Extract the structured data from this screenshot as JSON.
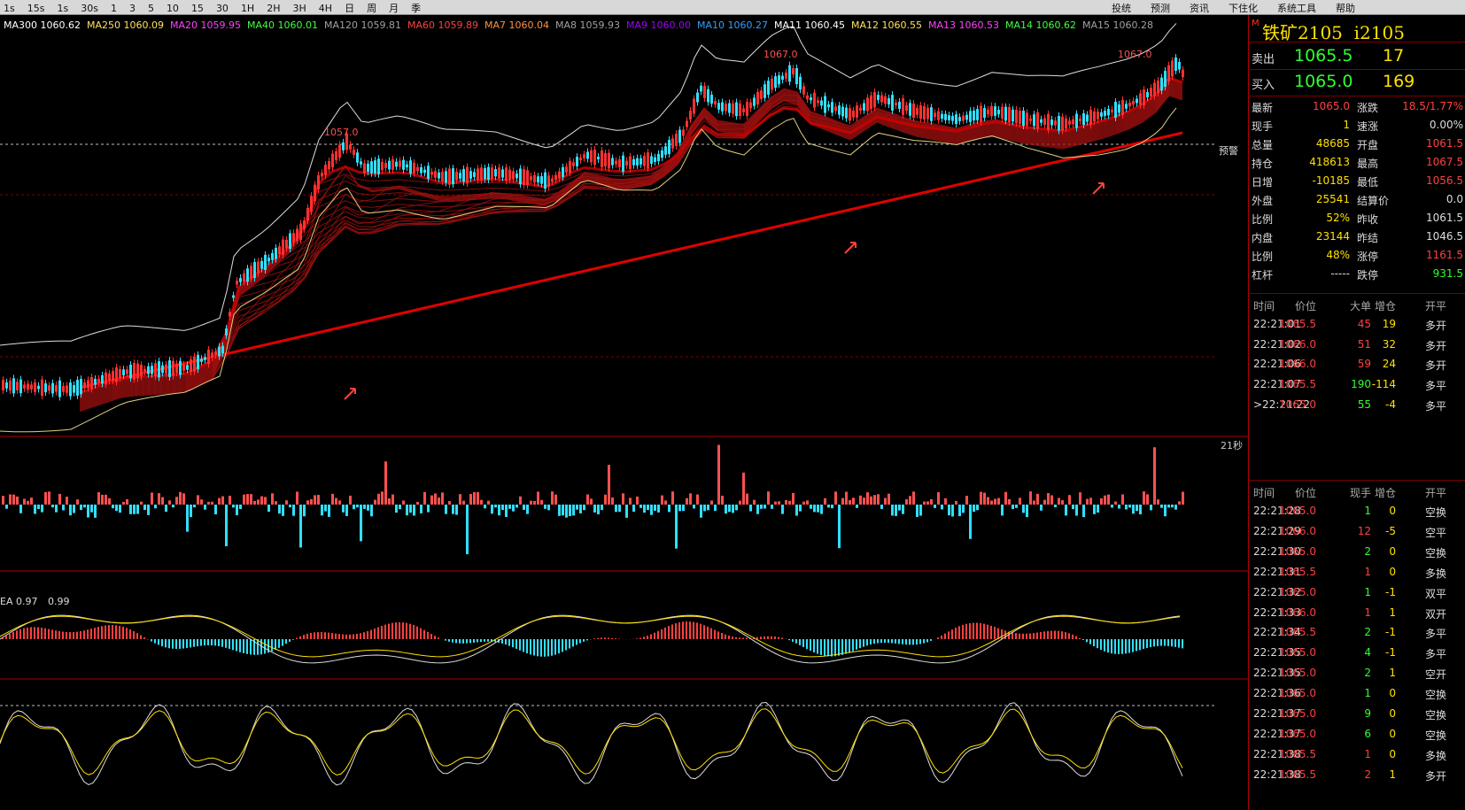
{
  "toolbar": {
    "left_items": [
      "1s",
      "15s",
      "1s",
      "30s",
      "1",
      "3",
      "5",
      "10",
      "15",
      "30",
      "1H",
      "2H",
      "3H",
      "4H",
      "日",
      "周",
      "月",
      "季"
    ],
    "right_items": [
      "投统",
      "预测",
      "资讯",
      "下住化",
      "系统工具",
      "帮助"
    ]
  },
  "ma_legend": [
    {
      "label": "MA300 1060.62",
      "color": "#ffffff"
    },
    {
      "label": "MA250 1060.09",
      "color": "#ffe060"
    },
    {
      "label": "MA20 1059.95",
      "color": "#ff40ff"
    },
    {
      "label": "MA40 1060.01",
      "color": "#40ff40"
    },
    {
      "label": "MA120 1059.81",
      "color": "#a0a0a0"
    },
    {
      "label": "MA60 1059.89",
      "color": "#ff4040"
    },
    {
      "label": "MA7 1060.04",
      "color": "#ff9040"
    },
    {
      "label": "MA8 1059.93",
      "color": "#a0a0a0"
    },
    {
      "label": "MA9 1060.00",
      "color": "#a000ff"
    },
    {
      "label": "MA10 1060.27",
      "color": "#30a0ff"
    },
    {
      "label": "MA11 1060.45",
      "color": "#ffffff"
    },
    {
      "label": "MA12 1060.55",
      "color": "#ffe060"
    },
    {
      "label": "MA13 1060.53",
      "color": "#ff40ff"
    },
    {
      "label": "MA14 1060.62",
      "color": "#40ff40"
    },
    {
      "label": "MA15 1060.28",
      "color": "#a0a0a0"
    }
  ],
  "markers": {
    "high_left": "1057.0",
    "high_mid": "1067.0",
    "high_right": "1067.0",
    "seconds": "21秒",
    "warning": "预警"
  },
  "macd_legend": {
    "prefix": "EA 0.97",
    "value": "0.99"
  },
  "instrument": {
    "marker": "M",
    "name": "铁矿2105",
    "code": "i2105"
  },
  "quotes": {
    "sell": {
      "label": "卖出",
      "price": "1065.5",
      "qty": "17"
    },
    "buy": {
      "label": "买入",
      "price": "1065.0",
      "qty": "169"
    }
  },
  "stats": [
    {
      "k1": "最新",
      "v1": "1065.0",
      "c1": "red",
      "k2": "涨跌",
      "v2": "18.5/1.77%",
      "c2": "red"
    },
    {
      "k1": "现手",
      "v1": "1",
      "c1": "yellow",
      "k2": "速涨",
      "v2": "0.00%",
      "c2": "white"
    },
    {
      "k1": "总量",
      "v1": "48685",
      "c1": "yellow",
      "k2": "开盘",
      "v2": "1061.5",
      "c2": "red"
    },
    {
      "k1": "持仓",
      "v1": "418613",
      "c1": "yellow",
      "k2": "最高",
      "v2": "1067.5",
      "c2": "red"
    },
    {
      "k1": "日增",
      "v1": "-10185",
      "c1": "yellow",
      "k2": "最低",
      "v2": "1056.5",
      "c2": "red"
    },
    {
      "k1": "外盘",
      "v1": "25541",
      "c1": "yellow",
      "k2": "结算价",
      "v2": "0.0",
      "c2": "white"
    },
    {
      "k1": "比例",
      "v1": "52%",
      "c1": "yellow",
      "k2": "昨收",
      "v2": "1061.5",
      "c2": "white"
    },
    {
      "k1": "内盘",
      "v1": "23144",
      "c1": "yellow",
      "k2": "昨结",
      "v2": "1046.5",
      "c2": "white"
    },
    {
      "k1": "比例",
      "v1": "48%",
      "c1": "yellow",
      "k2": "涨停",
      "v2": "1161.5",
      "c2": "red"
    },
    {
      "k1": "杠杆",
      "v1": "-----",
      "c1": "white",
      "k2": "跌停",
      "v2": "931.5",
      "c2": "green"
    }
  ],
  "big_trades": {
    "headers": [
      "时间",
      "价位",
      "大单",
      "增仓",
      "开平"
    ],
    "rows": [
      {
        "time": "22:21:01",
        "price": "1065.5",
        "a": "45",
        "b": "19",
        "type": "多开",
        "pc": "red",
        "ac": "red",
        "bc": "yellow"
      },
      {
        "time": "22:21:02",
        "price": "1066.0",
        "a": "51",
        "b": "32",
        "type": "多开",
        "pc": "red",
        "ac": "red",
        "bc": "yellow"
      },
      {
        "time": "22:21:06",
        "price": "1066.0",
        "a": "59",
        "b": "24",
        "type": "多开",
        "pc": "red",
        "ac": "red",
        "bc": "yellow"
      },
      {
        "time": "22:21:07",
        "price": "1065.5",
        "a": "190",
        "b": "-114",
        "type": "多平",
        "pc": "red",
        "ac": "green",
        "bc": "yellow"
      },
      {
        "time": ">22:21:22",
        "price": "1065.0",
        "a": "55",
        "b": "-4",
        "type": "多平",
        "pc": "red",
        "ac": "green",
        "bc": "yellow"
      }
    ]
  },
  "ticks": {
    "headers": [
      "时间",
      "价位",
      "现手",
      "增仓",
      "开平"
    ],
    "rows": [
      {
        "time": "22:21:28",
        "price": "1065.0",
        "a": "1",
        "b": "0",
        "type": "空换",
        "ac": "green"
      },
      {
        "time": "22:21:29",
        "price": "1066.0",
        "a": "12",
        "b": "-5",
        "type": "空平",
        "ac": "red"
      },
      {
        "time": "22:21:30",
        "price": "1065.0",
        "a": "2",
        "b": "0",
        "type": "空换",
        "ac": "green"
      },
      {
        "time": "22:21:31",
        "price": "1065.5",
        "a": "1",
        "b": "0",
        "type": "多换",
        "ac": "red"
      },
      {
        "time": "22:21:32",
        "price": "1065.0",
        "a": "1",
        "b": "-1",
        "type": "双平",
        "ac": "green"
      },
      {
        "time": "22:21:33",
        "price": "1066.0",
        "a": "1",
        "b": "1",
        "type": "双开",
        "ac": "red"
      },
      {
        "time": "22:21:34",
        "price": "1065.5",
        "a": "2",
        "b": "-1",
        "type": "多平",
        "ac": "green"
      },
      {
        "time": "22:21:35",
        "price": "1065.0",
        "a": "4",
        "b": "-1",
        "type": "多平",
        "ac": "green"
      },
      {
        "time": "22:21:35",
        "price": "1065.0",
        "a": "2",
        "b": "1",
        "type": "空开",
        "ac": "green"
      },
      {
        "time": "22:21:36",
        "price": "1065.0",
        "a": "1",
        "b": "0",
        "type": "空换",
        "ac": "green"
      },
      {
        "time": "22:21:37",
        "price": "1065.0",
        "a": "9",
        "b": "0",
        "type": "空换",
        "ac": "green"
      },
      {
        "time": "22:21:37",
        "price": "1065.0",
        "a": "6",
        "b": "0",
        "type": "空换",
        "ac": "green"
      },
      {
        "time": "22:21:38",
        "price": "1065.5",
        "a": "1",
        "b": "0",
        "type": "多换",
        "ac": "red"
      },
      {
        "time": "22:21:38",
        "price": "1065.5",
        "a": "2",
        "b": "1",
        "type": "多开",
        "ac": "red"
      }
    ]
  },
  "colors": {
    "up": "#ff4040",
    "down": "#30e0ff",
    "accent_yellow": "#ffe000",
    "accent_green": "#30ff30",
    "panel_border": "#7a0000"
  }
}
